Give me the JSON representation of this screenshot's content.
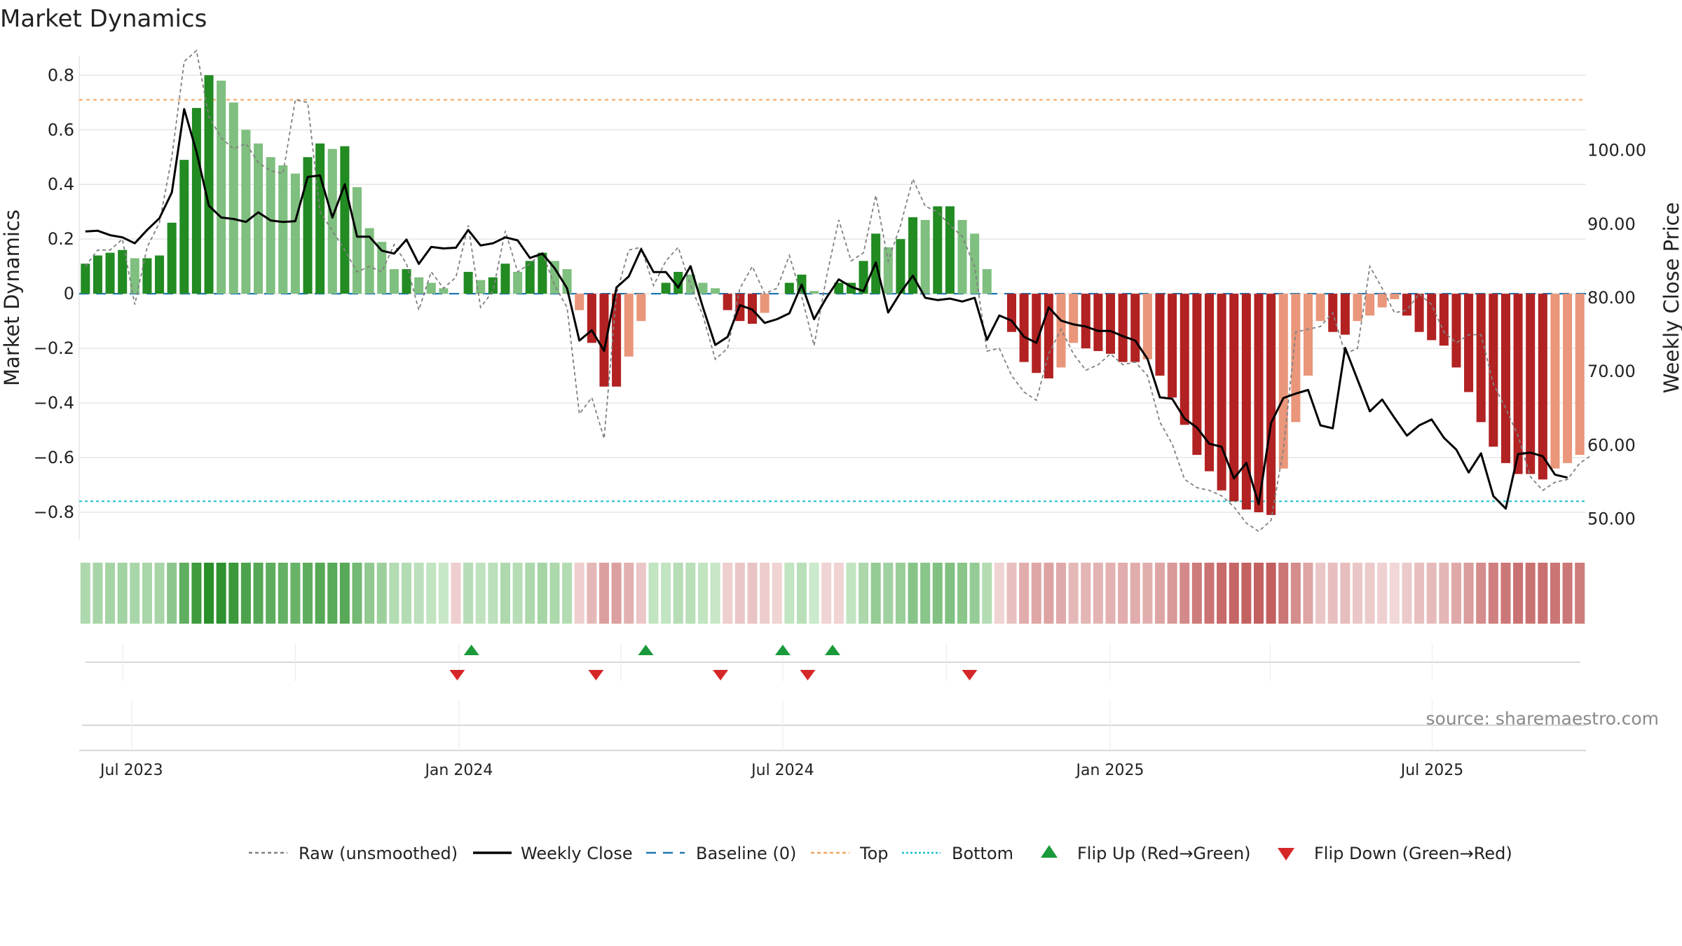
{
  "chart_data": {
    "type": "bar",
    "title": "Market Dynamics",
    "ylabel": "Market Dynamics",
    "y2label": "Weekly Close Price",
    "source": "source: sharemaestro.com",
    "ylim": [
      -0.9,
      0.87
    ],
    "y2lim": [
      47.2,
      112.8
    ],
    "yticks": [
      0.8,
      0.6,
      0.4,
      0.2,
      0,
      -0.2,
      -0.4,
      -0.6,
      -0.8
    ],
    "ytick_labels": [
      "0.8",
      "0.6",
      "0.4",
      "0.2",
      "0",
      "−0.2",
      "−0.4",
      "−0.6",
      "−0.8"
    ],
    "y2ticks": [
      100,
      90,
      80,
      70,
      60,
      50
    ],
    "y2tick_labels": [
      "100.00",
      "90.00",
      "80.00",
      "70.00",
      "60.00",
      "50.00"
    ],
    "x_start_date": "2023-06-05",
    "x_end_date": "2025-09-22",
    "x_ticks": [
      {
        "date": "2023-07-01",
        "label": "Jul 2023"
      },
      {
        "date": "2024-01-01",
        "label": "Jan 2024"
      },
      {
        "date": "2024-07-01",
        "label": "Jul 2024"
      },
      {
        "date": "2025-01-01",
        "label": "Jan 2025"
      },
      {
        "date": "2025-07-01",
        "label": "Jul 2025"
      }
    ],
    "top_line": 0.71,
    "bottom_line": -0.76,
    "grid": true,
    "legend_position": "bottom",
    "colors": {
      "pos_strong": "#228b22",
      "pos_weak": "#7fbf7f",
      "neg_strong": "#b22222",
      "neg_weak": "#e9967a",
      "raw_line": "#808080",
      "close_line": "#000000",
      "baseline": "#1f77b4",
      "top_line": "#f4a460",
      "bottom_line": "#17becf",
      "flip_up": "#1a9a3a",
      "flip_down": "#d62728"
    },
    "series": [
      {
        "name": "Market Dynamics",
        "values": [
          0.11,
          0.14,
          0.15,
          0.16,
          0.13,
          0.13,
          0.14,
          0.26,
          0.49,
          0.68,
          0.8,
          0.78,
          0.7,
          0.6,
          0.55,
          0.5,
          0.47,
          0.44,
          0.5,
          0.55,
          0.53,
          0.54,
          0.39,
          0.24,
          0.19,
          0.09,
          0.09,
          0.06,
          0.04,
          0.02,
          0.0,
          0.08,
          0.05,
          0.06,
          0.11,
          0.08,
          0.12,
          0.15,
          0.12,
          0.09,
          -0.06,
          -0.18,
          -0.34,
          -0.34,
          -0.23,
          -0.1,
          0.0,
          0.04,
          0.08,
          0.07,
          0.04,
          0.02,
          -0.06,
          -0.1,
          -0.11,
          -0.07,
          0.0,
          0.04,
          0.07,
          0.01,
          0.0,
          0.04,
          0.04,
          0.12,
          0.22,
          0.17,
          0.2,
          0.28,
          0.27,
          0.32,
          0.32,
          0.27,
          0.22,
          0.09,
          0.0,
          -0.14,
          -0.25,
          -0.29,
          -0.31,
          -0.27,
          -0.18,
          -0.2,
          -0.21,
          -0.22,
          -0.25,
          -0.25,
          -0.24,
          -0.3,
          -0.38,
          -0.48,
          -0.59,
          -0.65,
          -0.72,
          -0.76,
          -0.79,
          -0.8,
          -0.81,
          -0.64,
          -0.47,
          -0.3,
          -0.1,
          -0.14,
          -0.15,
          -0.1,
          -0.08,
          -0.05,
          -0.02,
          -0.08,
          -0.14,
          -0.17,
          -0.19,
          -0.27,
          -0.36,
          -0.47,
          -0.56,
          -0.62,
          -0.66,
          -0.66,
          -0.68,
          -0.64,
          -0.62,
          -0.59
        ]
      },
      {
        "name": "Raw (unsmoothed)",
        "values": [
          0.1,
          0.16,
          0.16,
          0.2,
          -0.04,
          0.17,
          0.26,
          0.5,
          0.85,
          0.89,
          0.65,
          0.57,
          0.53,
          0.55,
          0.48,
          0.45,
          0.44,
          0.71,
          0.7,
          0.3,
          0.23,
          0.16,
          0.08,
          0.1,
          0.08,
          0.18,
          0.11,
          -0.06,
          0.08,
          0.02,
          0.06,
          0.25,
          -0.05,
          0.01,
          0.23,
          0.08,
          0.11,
          0.15,
          0.03,
          -0.05,
          -0.44,
          -0.38,
          -0.53,
          0.0,
          0.16,
          0.17,
          0.03,
          0.12,
          0.17,
          0.03,
          -0.08,
          -0.24,
          -0.2,
          0.02,
          0.1,
          0.0,
          0.02,
          0.14,
          -0.01,
          -0.19,
          0.06,
          0.27,
          0.12,
          0.15,
          0.36,
          0.12,
          0.25,
          0.42,
          0.32,
          0.3,
          0.25,
          0.21,
          0.1,
          -0.21,
          -0.2,
          -0.3,
          -0.36,
          -0.39,
          -0.22,
          -0.13,
          -0.22,
          -0.28,
          -0.26,
          -0.22,
          -0.26,
          -0.25,
          -0.3,
          -0.47,
          -0.55,
          -0.68,
          -0.71,
          -0.72,
          -0.74,
          -0.78,
          -0.84,
          -0.87,
          -0.83,
          -0.57,
          -0.14,
          -0.13,
          -0.12,
          -0.07,
          -0.22,
          -0.2,
          0.1,
          0.02,
          -0.07,
          -0.06,
          0.0,
          -0.04,
          -0.14,
          -0.18,
          -0.15,
          -0.15,
          -0.33,
          -0.42,
          -0.52,
          -0.67,
          -0.72,
          -0.69,
          -0.68,
          -0.62,
          -0.59
        ]
      },
      {
        "name": "Weekly Close",
        "values": [
          89.0,
          89.1,
          88.5,
          88.2,
          87.4,
          89.2,
          90.8,
          94.3,
          105.6,
          99.8,
          92.5,
          90.9,
          90.7,
          90.3,
          91.6,
          90.5,
          90.3,
          90.4,
          96.4,
          96.6,
          90.9,
          95.4,
          88.3,
          88.3,
          86.4,
          86.0,
          87.9,
          84.6,
          86.9,
          86.7,
          86.8,
          89.2,
          87.1,
          87.4,
          88.2,
          87.8,
          85.4,
          86.0,
          84.0,
          81.3,
          74.2,
          75.6,
          72.8,
          81.4,
          82.9,
          86.6,
          83.5,
          83.5,
          81.4,
          84.3,
          78.7,
          73.6,
          74.7,
          79.0,
          78.4,
          76.6,
          77.1,
          77.9,
          81.8,
          77.1,
          80.0,
          82.5,
          81.5,
          80.9,
          84.8,
          78.0,
          80.7,
          83.0,
          80.0,
          79.7,
          79.9,
          79.5,
          80.0,
          74.3,
          77.6,
          76.9,
          74.7,
          73.9,
          78.7,
          76.9,
          76.4,
          76.1,
          75.5,
          75.5,
          74.8,
          74.2,
          71.7,
          66.5,
          66.3,
          63.6,
          62.4,
          60.2,
          59.8,
          55.5,
          57.6,
          52.0,
          63.0,
          66.4,
          67.0,
          67.5,
          62.7,
          62.3,
          73.2,
          68.9,
          64.6,
          66.2,
          63.7,
          61.3,
          62.7,
          63.5,
          61.0,
          59.4,
          56.3,
          58.9,
          53.1,
          51.4,
          58.8,
          59.0,
          58.5,
          56.0,
          55.6
        ]
      }
    ],
    "state_strip": [
      0.11,
      0.14,
      0.15,
      0.16,
      0.13,
      0.13,
      0.14,
      0.26,
      0.49,
      0.68,
      0.8,
      0.78,
      0.7,
      0.6,
      0.55,
      0.5,
      0.47,
      0.44,
      0.5,
      0.55,
      0.53,
      0.54,
      0.39,
      0.24,
      0.19,
      0.09,
      0.09,
      0.06,
      0.04,
      0.02,
      -0.06,
      0.08,
      0.05,
      0.06,
      0.11,
      0.08,
      0.12,
      0.15,
      0.12,
      0.09,
      -0.06,
      -0.18,
      -0.34,
      -0.34,
      -0.23,
      -0.1,
      0.04,
      0.04,
      0.08,
      0.07,
      0.04,
      0.02,
      -0.06,
      -0.1,
      -0.11,
      -0.07,
      -0.04,
      0.04,
      0.07,
      0.01,
      -0.04,
      -0.04,
      0.04,
      0.12,
      0.22,
      0.17,
      0.2,
      0.28,
      0.27,
      0.32,
      0.32,
      0.27,
      0.22,
      0.09,
      -0.04,
      -0.14,
      -0.25,
      -0.29,
      -0.31,
      -0.27,
      -0.18,
      -0.2,
      -0.21,
      -0.22,
      -0.25,
      -0.25,
      -0.24,
      -0.3,
      -0.38,
      -0.48,
      -0.59,
      -0.65,
      -0.72,
      -0.76,
      -0.79,
      -0.8,
      -0.81,
      -0.64,
      -0.47,
      -0.3,
      -0.1,
      -0.14,
      -0.15,
      -0.1,
      -0.08,
      -0.05,
      -0.02,
      -0.08,
      -0.14,
      -0.17,
      -0.19,
      -0.27,
      -0.36,
      -0.47,
      -0.56,
      -0.62,
      -0.66,
      -0.66,
      -0.68,
      -0.64,
      -0.62,
      -0.59
    ],
    "flips_up_dates": [
      "2024-01-08",
      "2024-04-15",
      "2024-07-01",
      "2024-07-29"
    ],
    "flips_down_dates": [
      "2023-12-31",
      "2024-03-18",
      "2024-05-27",
      "2024-07-15",
      "2024-10-14"
    ]
  },
  "legend": [
    {
      "label": "Raw (unsmoothed)",
      "kind": "dashed",
      "color": "#808080"
    },
    {
      "label": "Weekly Close",
      "kind": "solid",
      "color": "#000000"
    },
    {
      "label": "Baseline (0)",
      "kind": "dash-long",
      "color": "#1f77b4"
    },
    {
      "label": "Top",
      "kind": "dashed",
      "color": "#f4a460"
    },
    {
      "label": "Bottom",
      "kind": "dotted",
      "color": "#17becf"
    },
    {
      "label": "Flip Up (Red→Green)",
      "kind": "tri-up",
      "color": "#1a9a3a"
    },
    {
      "label": "Flip Down (Green→Red)",
      "kind": "tri-down",
      "color": "#d62728"
    }
  ]
}
